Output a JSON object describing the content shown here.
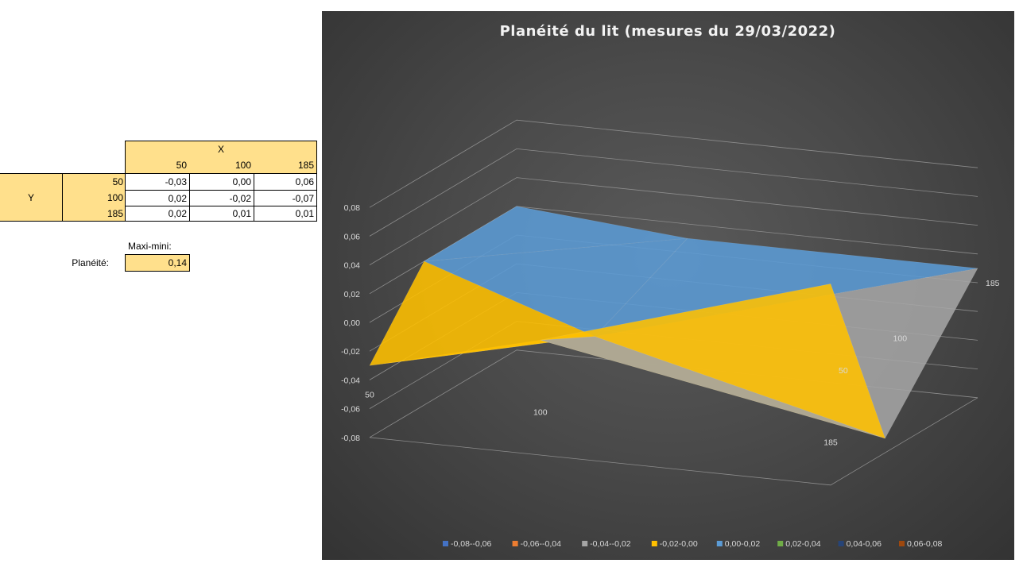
{
  "table": {
    "x_header": "X",
    "y_header": "Y",
    "x_values": [
      "50",
      "100",
      "185"
    ],
    "rows": [
      {
        "y": "50",
        "cells": [
          "-0,03",
          "0,00",
          "0,06"
        ]
      },
      {
        "y": "100",
        "cells": [
          "0,02",
          "-0,02",
          "-0,07"
        ]
      },
      {
        "y": "185",
        "cells": [
          "0,02",
          "0,01",
          "0,01"
        ]
      }
    ]
  },
  "summary": {
    "maxi_mini_label": "Maxi-mini:",
    "planeite_label": "Planéité:",
    "planeite_value": "0,14"
  },
  "chart_data": {
    "type": "surface",
    "title": "Planéité du lit (mesures du 29/03/2022)",
    "x": [
      50,
      100,
      185
    ],
    "y": [
      50,
      100,
      185
    ],
    "z": [
      [
        -0.03,
        0.0,
        0.06
      ],
      [
        0.02,
        -0.02,
        -0.07
      ],
      [
        0.02,
        0.01,
        0.01
      ]
    ],
    "x_tick_labels": [
      "50",
      "100",
      "185"
    ],
    "y_tick_labels": [
      "50",
      "100",
      "185"
    ],
    "z_tick_labels": [
      "0,08",
      "0,06",
      "0,04",
      "0,02",
      "0,00",
      "-0,02",
      "-0,04",
      "-0,06",
      "-0,08"
    ],
    "zlim": [
      -0.08,
      0.08
    ],
    "legend_position": "bottom",
    "legend": [
      {
        "label": "-0,08--0,06",
        "color": "#4472c4"
      },
      {
        "label": "-0,06--0,04",
        "color": "#ed7d31"
      },
      {
        "label": "-0,04--0,02",
        "color": "#a5a5a5"
      },
      {
        "label": "-0,02-0,00",
        "color": "#ffc000"
      },
      {
        "label": "0,00-0,02",
        "color": "#5b9bd5"
      },
      {
        "label": "0,02-0,04",
        "color": "#70ad47"
      },
      {
        "label": "0,04-0,06",
        "color": "#264478"
      },
      {
        "label": "0,06-0,08",
        "color": "#9e480e"
      }
    ]
  }
}
